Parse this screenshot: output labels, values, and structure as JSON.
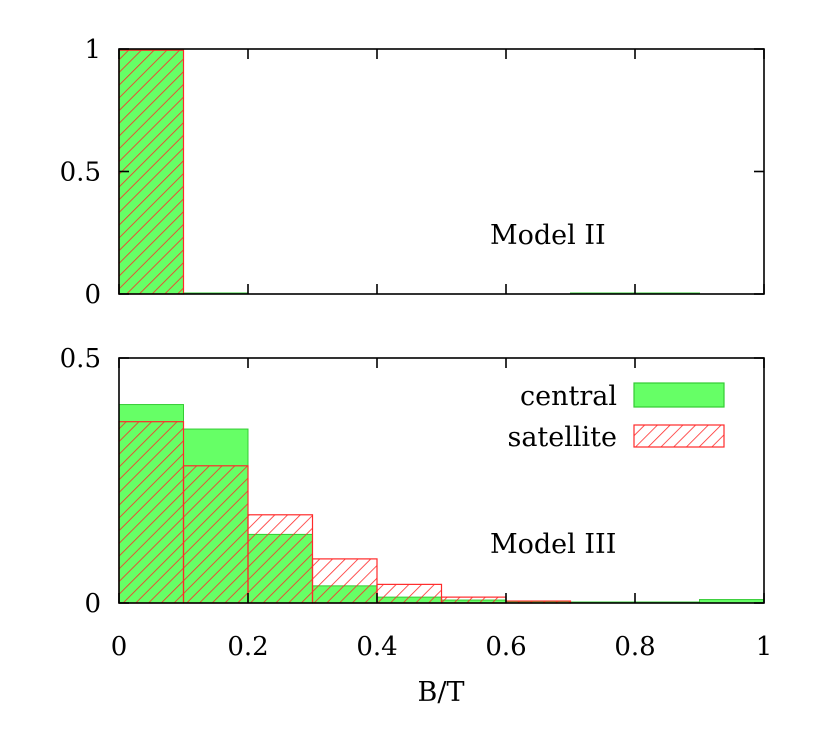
{
  "chart_data": [
    {
      "type": "bar",
      "panel": "top",
      "annotation": "Model II",
      "xlabel": "",
      "ylabel": "",
      "xlim": [
        0,
        1
      ],
      "ylim": [
        0,
        1
      ],
      "bin_width": 0.1,
      "x": [
        0.0,
        0.1,
        0.2,
        0.3,
        0.4,
        0.5,
        0.6,
        0.7,
        0.8,
        0.9
      ],
      "yticks": [
        "0",
        "0.5",
        "1"
      ],
      "ytick_values": [
        0,
        0.5,
        1
      ],
      "series": [
        {
          "name": "central",
          "values": [
            1.0,
            0.004,
            0.0,
            0.0,
            0.0,
            0.0,
            0.0,
            0.003,
            0.002,
            0.0
          ],
          "color": "#66ff66",
          "fill": "solid"
        },
        {
          "name": "satellite",
          "values": [
            0.995,
            0.0,
            0.0,
            0.0,
            0.0,
            0.0,
            0.0,
            0.0,
            0.0,
            0.0
          ],
          "color": "#ff2a2a",
          "fill": "hatched"
        }
      ],
      "legend": "none"
    },
    {
      "type": "bar",
      "panel": "bottom",
      "annotation": "Model III",
      "xlabel": "B/T",
      "ylabel": "",
      "xlim": [
        0,
        1
      ],
      "ylim": [
        0,
        0.5
      ],
      "bin_width": 0.1,
      "x": [
        0.0,
        0.1,
        0.2,
        0.3,
        0.4,
        0.5,
        0.6,
        0.7,
        0.8,
        0.9
      ],
      "xticks": [
        "0",
        "0.2",
        "0.4",
        "0.6",
        "0.8",
        "1"
      ],
      "xtick_values": [
        0,
        0.2,
        0.4,
        0.6,
        0.8,
        1
      ],
      "yticks": [
        "0",
        "0.5"
      ],
      "ytick_values": [
        0,
        0.5
      ],
      "series": [
        {
          "name": "central",
          "values": [
            0.405,
            0.355,
            0.14,
            0.035,
            0.012,
            0.006,
            0.003,
            0.002,
            0.002,
            0.007
          ],
          "color": "#66ff66",
          "fill": "solid"
        },
        {
          "name": "satellite",
          "values": [
            0.37,
            0.28,
            0.18,
            0.09,
            0.038,
            0.012,
            0.004,
            0.0,
            0.0,
            0.0
          ],
          "color": "#ff2a2a",
          "fill": "hatched"
        }
      ],
      "legend": "top-right",
      "legend_entries": [
        "central",
        "satellite"
      ]
    }
  ]
}
